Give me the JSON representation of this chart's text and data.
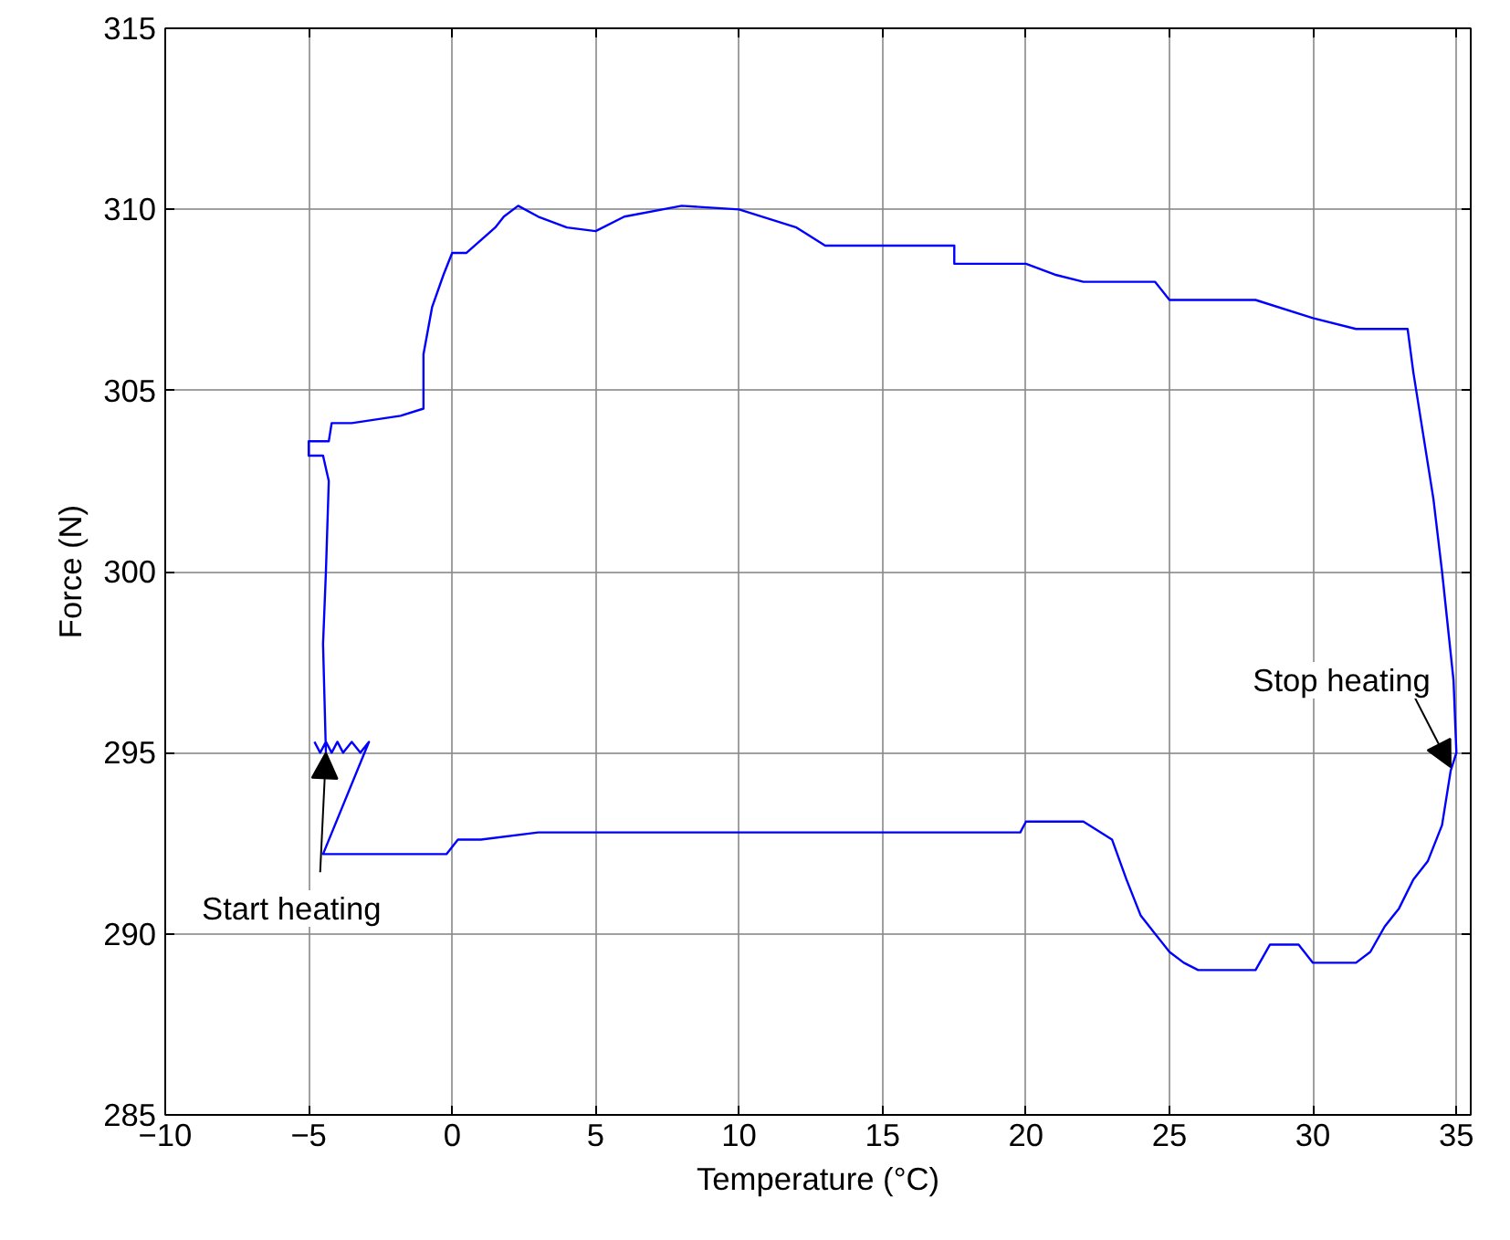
{
  "chart_data": {
    "type": "line",
    "xlabel": "Temperature (°C)",
    "ylabel": "Force (N)",
    "xlim": [
      -10,
      35.5
    ],
    "ylim": [
      285,
      315
    ],
    "xticks": [
      -10,
      -5,
      0,
      5,
      10,
      15,
      20,
      25,
      30,
      35
    ],
    "yticks": [
      285,
      290,
      295,
      300,
      305,
      310,
      315
    ],
    "grid": true,
    "line_style": "solid",
    "marker": "none",
    "annotations": [
      {
        "text": "Start heating",
        "x": -4.4,
        "y": 295
      },
      {
        "text": "Stop heating",
        "x": 34.8,
        "y": 294.6
      }
    ],
    "series": [
      {
        "color": "#0000ff",
        "x": [
          -4.8,
          -4.6,
          -4.4,
          -4.2,
          -4.0,
          -3.8,
          -3.5,
          -3.2,
          -2.9,
          -4.5,
          -3,
          -1.5,
          -0.2,
          0.2,
          1,
          3,
          10,
          19.8,
          20,
          22,
          23,
          23.5,
          24,
          24.5,
          25,
          25.5,
          26,
          28,
          28.5,
          29.5,
          30,
          31.5,
          32,
          32.5,
          33,
          33.5,
          34,
          34.5,
          34.8,
          35,
          34.9,
          34.5,
          34.2,
          33.8,
          33.5,
          33.3,
          31.5,
          30,
          28,
          25,
          24.5,
          22,
          21,
          20,
          17.5,
          17.5,
          13,
          12,
          10,
          8,
          6,
          5,
          4,
          3,
          2.3,
          1.8,
          1.5,
          0.5,
          0,
          -0.3,
          -0.7,
          -1,
          -1,
          -1.8,
          -3.5,
          -4.2,
          -4.3,
          -5,
          -5,
          -4.5,
          -4.3,
          -4.4,
          -4.5,
          -4.4
        ],
        "values": [
          295.3,
          295,
          295.3,
          295,
          295.3,
          295,
          295.3,
          295,
          295.3,
          292.2,
          292.2,
          292.2,
          292.2,
          292.6,
          292.6,
          292.8,
          292.8,
          292.8,
          293.1,
          293.1,
          292.6,
          291.5,
          290.5,
          290,
          289.5,
          289.2,
          289,
          289,
          289.7,
          289.7,
          289.2,
          289.2,
          289.5,
          290.2,
          290.7,
          291.5,
          292,
          293,
          294.5,
          295,
          297,
          300,
          302,
          304,
          305.5,
          306.7,
          306.7,
          307,
          307.5,
          307.5,
          308,
          308,
          308.2,
          308.5,
          308.5,
          309,
          309,
          309.5,
          310,
          310.1,
          309.8,
          309.4,
          309.5,
          309.8,
          310.1,
          309.8,
          309.5,
          308.8,
          308.8,
          308.2,
          307.3,
          306,
          304.5,
          304.3,
          304.1,
          304.1,
          303.6,
          303.6,
          303.2,
          303.2,
          302.5,
          300,
          298,
          295
        ]
      }
    ]
  }
}
